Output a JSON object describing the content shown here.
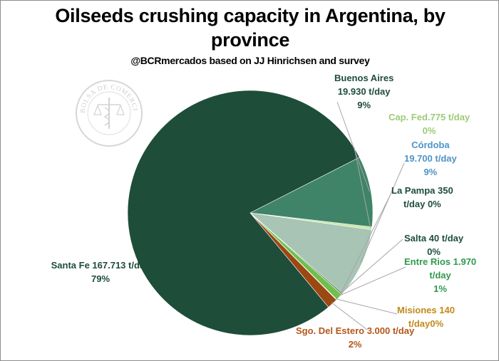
{
  "chart_data": {
    "type": "pie",
    "title_line1": "Oilseeds crushing capacity in Argentina, by",
    "title_line2": "province",
    "subtitle": "@BCRmercados based on JJ Hinrichsen and survey",
    "watermark_text": "BOLSA DE COMERCIO DE ROSARIO",
    "slices": [
      {
        "name": "Buenos Aires",
        "value": 19930,
        "label_value": "19.930 t/day",
        "percent_label": "9%",
        "color": "#3f8468",
        "label_color": "#1e4d3a"
      },
      {
        "name": "Cap. Fed.",
        "value": 775,
        "label_value": "775 t/day",
        "percent_label": "0%",
        "color": "#c9e6a7",
        "label_color": "#9dcb76"
      },
      {
        "name": "Córdoba",
        "value": 19700,
        "label_value": "19.700 t/day",
        "percent_label": "9%",
        "color": "#a7c4b5",
        "label_color": "#4f93c8"
      },
      {
        "name": "La Pampa",
        "value": 350,
        "label_value": "350 t/day",
        "percent_label": "0%",
        "color": "#2f5d32",
        "label_color": "#1e4d3a"
      },
      {
        "name": "Salta",
        "value": 40,
        "label_value": "40 t/day",
        "percent_label": "0%",
        "color": "#5a8a5c",
        "label_color": "#1e4d3a"
      },
      {
        "name": "Entre Rios",
        "value": 1970,
        "label_value": "1.970 t/day",
        "percent_label": "1%",
        "color": "#70bf4c",
        "label_color": "#2f9a4c"
      },
      {
        "name": "Misiones",
        "value": 140,
        "label_value": "140 t/day",
        "percent_label": "0%",
        "color": "#c99a2e",
        "label_color": "#c08a1a"
      },
      {
        "name": "Sgo. Del Estero",
        "value": 3000,
        "label_value": "3.000 t/day",
        "percent_label": "2%",
        "color": "#9c4813",
        "label_color": "#b5561a"
      },
      {
        "name": "Santa Fe",
        "value": 167713,
        "label_value": "167.713 t/day",
        "percent_label": "79%",
        "color": "#1e4d3a",
        "label_color": "#1e4d3a"
      }
    ]
  },
  "labels": {
    "buenos_aires": [
      "Buenos Aires",
      "19.930 t/day",
      "9%"
    ],
    "cap_fed": [
      "Cap. Fed.775 t/day",
      "0%"
    ],
    "cordoba": [
      "Córdoba",
      "19.700 t/day",
      "9%"
    ],
    "la_pampa": [
      "La Pampa 350",
      "t/day 0%"
    ],
    "salta": [
      "Salta 40 t/day",
      "0%"
    ],
    "entre_rios": [
      "Entre Rios 1.970",
      "t/day",
      "1%"
    ],
    "misiones": [
      "Misiones 140",
      "t/day0%"
    ],
    "sgo": [
      "Sgo. Del Estero 3.000 t/day",
      "2%"
    ],
    "santa_fe": [
      "Santa Fe 167.713 t/day",
      "79%"
    ]
  }
}
